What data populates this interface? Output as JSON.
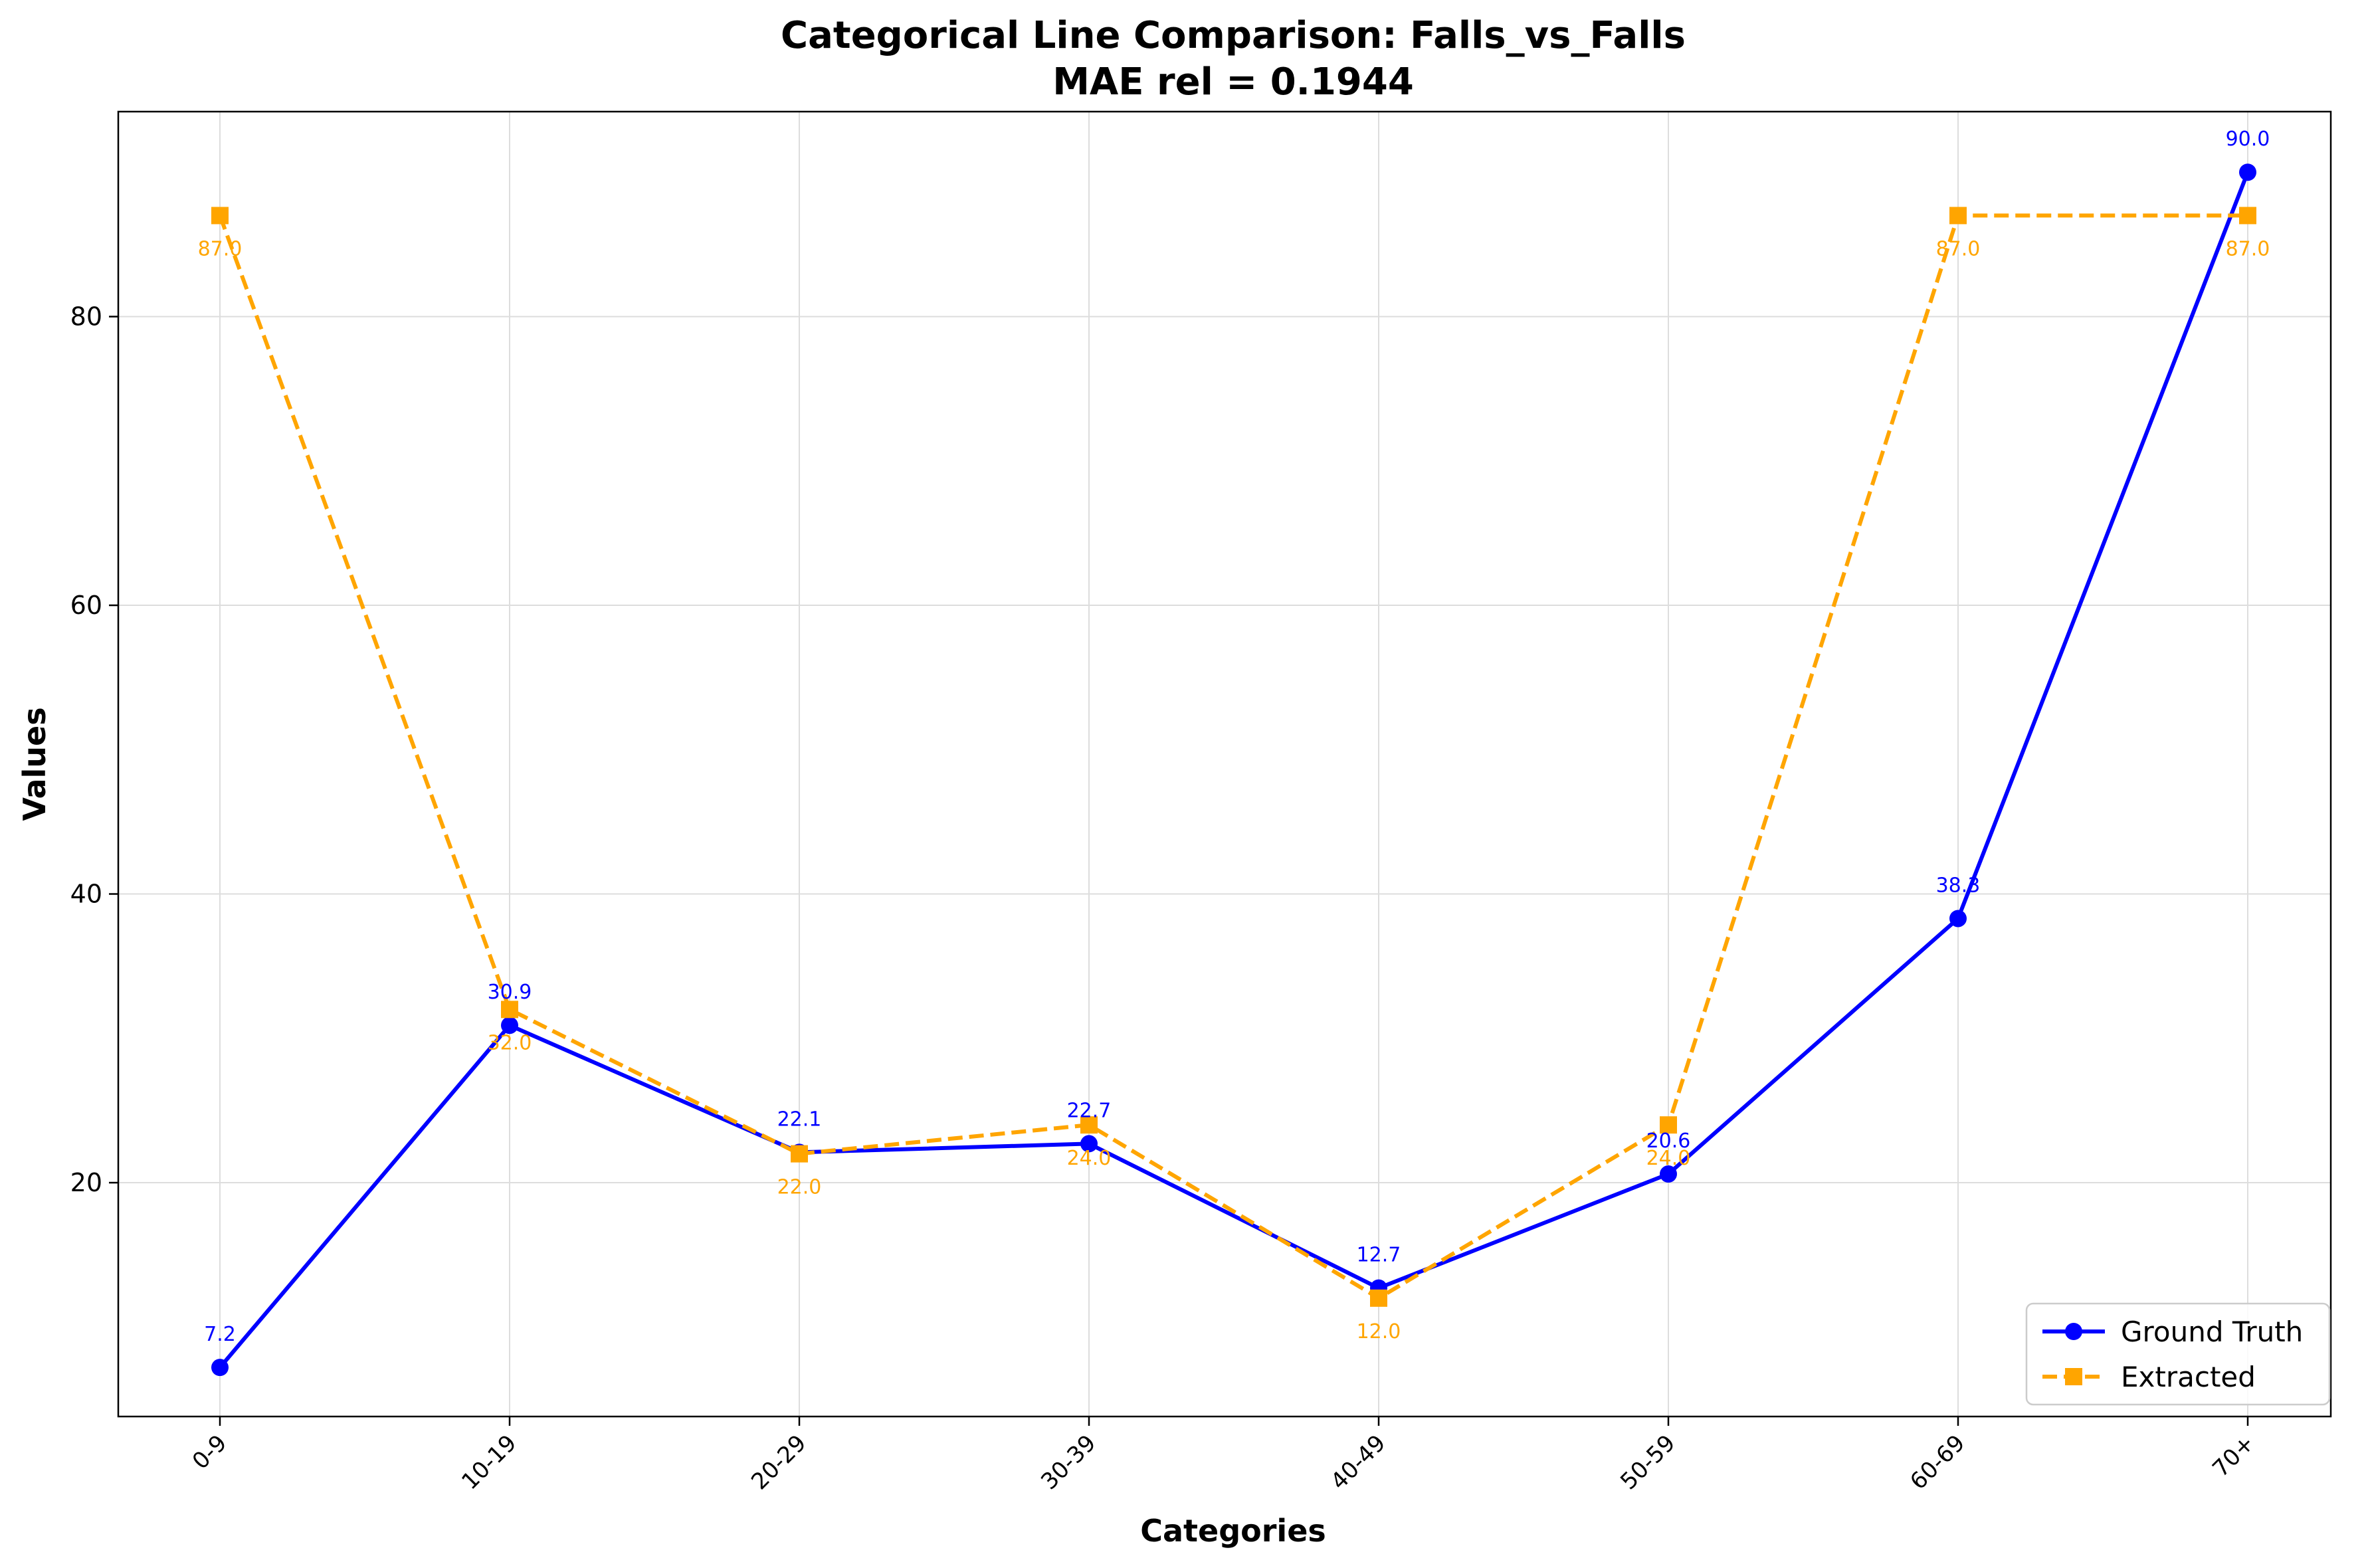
{
  "chart_data": {
    "type": "line",
    "title": "Categorical Line Comparison: Falls_vs_Falls",
    "subtitle": "MAE rel = 0.1944",
    "xlabel": "Categories",
    "ylabel": "Values",
    "categories": [
      "0-9",
      "10-19",
      "20-29",
      "30-39",
      "40-49",
      "50-59",
      "60-69",
      "70+"
    ],
    "yticks": [
      20,
      40,
      60,
      80
    ],
    "ylim": [
      3.8,
      94.2
    ],
    "grid": true,
    "legend_position": "lower-right",
    "series": [
      {
        "name": "Ground Truth",
        "values": [
          7.2,
          30.9,
          22.1,
          22.7,
          12.7,
          20.6,
          38.3,
          90.0
        ],
        "labels": [
          "7.2",
          "30.9",
          "22.1",
          "22.7",
          "12.7",
          "20.6",
          "38.3",
          "90.0"
        ],
        "color": "#0000ff",
        "marker": "circle",
        "linestyle": "solid"
      },
      {
        "name": "Extracted",
        "values": [
          87.0,
          32.0,
          22.0,
          24.0,
          12.0,
          24.0,
          87.0,
          87.0
        ],
        "labels": [
          "87.0",
          "32.0",
          "22.0",
          "24.0",
          "12.0",
          "24.0",
          "87.0",
          "87.0"
        ],
        "color": "#ffa500",
        "marker": "square",
        "linestyle": "dashed"
      }
    ]
  }
}
